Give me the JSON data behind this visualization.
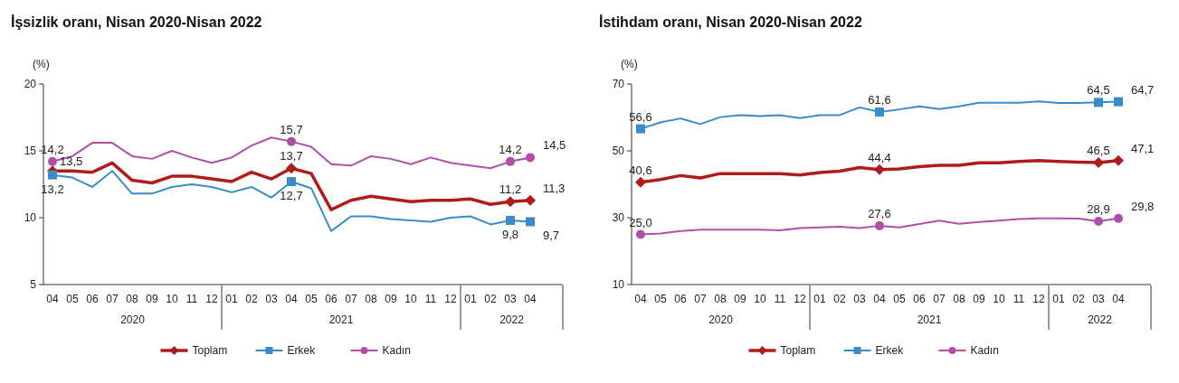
{
  "chart_data": [
    {
      "type": "line",
      "title": "İşsizlik oranı, Nisan 2020-Nisan 2022",
      "ylabel": "(%)",
      "categories": [
        "04",
        "05",
        "06",
        "07",
        "08",
        "09",
        "10",
        "11",
        "12",
        "01",
        "02",
        "03",
        "04",
        "05",
        "06",
        "07",
        "08",
        "09",
        "10",
        "11",
        "12",
        "01",
        "02",
        "03",
        "04"
      ],
      "annotations": [
        "2020",
        "2021",
        "2022"
      ],
      "ylim": [
        5,
        20
      ],
      "yticks": [
        5,
        10,
        15,
        20
      ],
      "grid": false,
      "legend": "bottom",
      "series": [
        {
          "name": "Toplam",
          "color": "#b01c1c",
          "values": [
            13.5,
            13.5,
            13.4,
            14.1,
            12.8,
            12.6,
            13.1,
            13.1,
            12.9,
            12.7,
            13.4,
            12.9,
            13.7,
            13.3,
            10.6,
            11.3,
            11.6,
            11.4,
            11.2,
            11.3,
            11.3,
            11.4,
            11.0,
            11.2,
            11.3
          ],
          "value_labels": [
            "13,5",
            null,
            null,
            null,
            null,
            null,
            null,
            null,
            null,
            null,
            null,
            null,
            "13,7",
            null,
            null,
            null,
            null,
            null,
            null,
            null,
            null,
            null,
            null,
            "11,2",
            "11,3"
          ]
        },
        {
          "name": "Erkek",
          "color": "#3a8cc8",
          "values": [
            13.2,
            13.0,
            12.3,
            13.5,
            11.8,
            11.8,
            12.3,
            12.5,
            12.3,
            11.9,
            12.3,
            11.5,
            12.7,
            12.2,
            9.0,
            10.1,
            10.1,
            9.9,
            9.8,
            9.7,
            10.0,
            10.1,
            9.5,
            9.8,
            9.7
          ],
          "value_labels": [
            "13,2",
            null,
            null,
            null,
            null,
            null,
            null,
            null,
            null,
            null,
            null,
            null,
            "12,7",
            null,
            null,
            null,
            null,
            null,
            null,
            null,
            null,
            null,
            null,
            "9,8",
            "9,7"
          ]
        },
        {
          "name": "Kadın",
          "color": "#b04fa8",
          "values": [
            14.2,
            14.6,
            15.6,
            15.6,
            14.6,
            14.4,
            15.0,
            14.5,
            14.1,
            14.5,
            15.4,
            16.0,
            15.7,
            15.3,
            14.0,
            13.9,
            14.6,
            14.4,
            14.0,
            14.5,
            14.1,
            13.9,
            13.7,
            14.2,
            14.5
          ],
          "value_labels": [
            "14,2",
            null,
            null,
            null,
            null,
            null,
            null,
            null,
            null,
            null,
            null,
            null,
            "15,7",
            null,
            null,
            null,
            null,
            null,
            null,
            null,
            null,
            null,
            null,
            "14,2",
            "14,5"
          ]
        }
      ]
    },
    {
      "type": "line",
      "title": "İstihdam oranı, Nisan 2020-Nisan 2022",
      "ylabel": "(%)",
      "categories": [
        "04",
        "05",
        "06",
        "07",
        "08",
        "09",
        "10",
        "11",
        "12",
        "01",
        "02",
        "03",
        "04",
        "05",
        "06",
        "07",
        "08",
        "09",
        "10",
        "11",
        "12",
        "01",
        "02",
        "03",
        "04"
      ],
      "annotations": [
        "2020",
        "2021",
        "2022"
      ],
      "ylim": [
        10,
        70
      ],
      "yticks": [
        10,
        30,
        50,
        70
      ],
      "grid": false,
      "legend": "bottom",
      "series": [
        {
          "name": "Toplam",
          "color": "#b01c1c",
          "values": [
            40.6,
            41.4,
            42.6,
            41.9,
            43.2,
            43.2,
            43.2,
            43.2,
            42.8,
            43.5,
            43.9,
            45.0,
            44.4,
            44.6,
            45.3,
            45.7,
            45.7,
            46.4,
            46.4,
            46.8,
            47.1,
            46.8,
            46.6,
            46.5,
            47.1
          ],
          "value_labels": [
            "40,6",
            null,
            null,
            null,
            null,
            null,
            null,
            null,
            null,
            null,
            null,
            null,
            "44,4",
            null,
            null,
            null,
            null,
            null,
            null,
            null,
            null,
            null,
            null,
            "46,5",
            "47,1"
          ]
        },
        {
          "name": "Erkek",
          "color": "#3a8cc8",
          "values": [
            56.6,
            58.5,
            59.7,
            58.0,
            60.1,
            60.7,
            60.4,
            60.7,
            59.8,
            60.7,
            60.7,
            63.0,
            61.6,
            62.4,
            63.3,
            62.5,
            63.3,
            64.4,
            64.4,
            64.4,
            64.8,
            64.3,
            64.3,
            64.5,
            64.7
          ],
          "value_labels": [
            "56,6",
            null,
            null,
            null,
            null,
            null,
            null,
            null,
            null,
            null,
            null,
            null,
            "61,6",
            null,
            null,
            null,
            null,
            null,
            null,
            null,
            null,
            null,
            null,
            "64,5",
            "64,7"
          ]
        },
        {
          "name": "Kadın",
          "color": "#b04fa8",
          "values": [
            25.0,
            25.3,
            26.0,
            26.4,
            26.4,
            26.4,
            26.4,
            26.2,
            26.9,
            27.1,
            27.3,
            26.9,
            27.6,
            27.1,
            28.1,
            29.1,
            28.2,
            28.7,
            29.1,
            29.6,
            29.8,
            29.8,
            29.7,
            28.9,
            29.8
          ],
          "value_labels": [
            "25,0",
            null,
            null,
            null,
            null,
            null,
            null,
            null,
            null,
            null,
            null,
            null,
            "27,6",
            null,
            null,
            null,
            null,
            null,
            null,
            null,
            null,
            null,
            null,
            "28,9",
            "29,8"
          ]
        }
      ]
    }
  ]
}
